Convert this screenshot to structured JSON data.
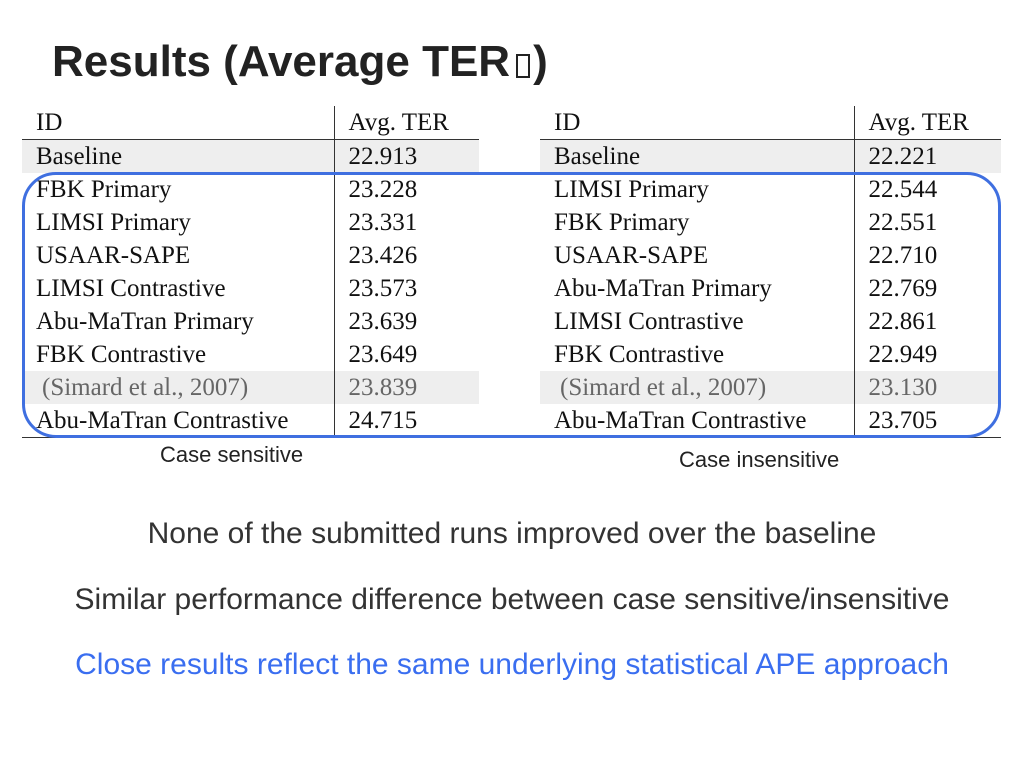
{
  "slide": {
    "title": "Results (Average TER",
    "title_close": ")",
    "title_glyph": "missing-glyph-box"
  },
  "tables": {
    "case_sensitive": {
      "header": {
        "id": "ID",
        "score": "Avg. TER"
      },
      "rows": [
        {
          "id": "Baseline",
          "score": "22.913",
          "style": "shaded"
        },
        {
          "id": "FBK Primary",
          "score": "23.228"
        },
        {
          "id": "LIMSI Primary",
          "score": "23.331"
        },
        {
          "id": "USAAR-SAPE",
          "score": "23.426"
        },
        {
          "id": "LIMSI Contrastive",
          "score": "23.573"
        },
        {
          "id": "Abu-MaTran Primary",
          "score": "23.639"
        },
        {
          "id": "FBK Contrastive",
          "score": "23.649"
        },
        {
          "id": "(Simard et al., 2007)",
          "score": "23.839",
          "style": "shaded-muted"
        },
        {
          "id": "Abu-MaTran Contrastive",
          "score": "24.715"
        }
      ],
      "caption": "Case sensitive"
    },
    "case_insensitive": {
      "header": {
        "id": "ID",
        "score": "Avg. TER"
      },
      "rows": [
        {
          "id": "Baseline",
          "score": "22.221",
          "style": "shaded"
        },
        {
          "id": "LIMSI Primary",
          "score": "22.544"
        },
        {
          "id": "FBK Primary",
          "score": "22.551"
        },
        {
          "id": "USAAR-SAPE",
          "score": "22.710"
        },
        {
          "id": "Abu-MaTran Primary",
          "score": "22.769"
        },
        {
          "id": "LIMSI Contrastive",
          "score": "22.861"
        },
        {
          "id": "FBK Contrastive",
          "score": "22.949"
        },
        {
          "id": "(Simard et al., 2007)",
          "score": "23.130",
          "style": "shaded-muted"
        },
        {
          "id": "Abu-MaTran Contrastive",
          "score": "23.705"
        }
      ],
      "caption": "Case insensitive"
    }
  },
  "notes": [
    "None of the submitted runs improved over the baseline",
    "Similar performance difference between case sensitive/insensitive",
    "Close results reflect the same underlying statistical APE approach"
  ],
  "colors": {
    "highlight_box": "#3f6fe0",
    "emphasis_text": "#3a6ef0",
    "row_shade": "#eeeeee"
  }
}
